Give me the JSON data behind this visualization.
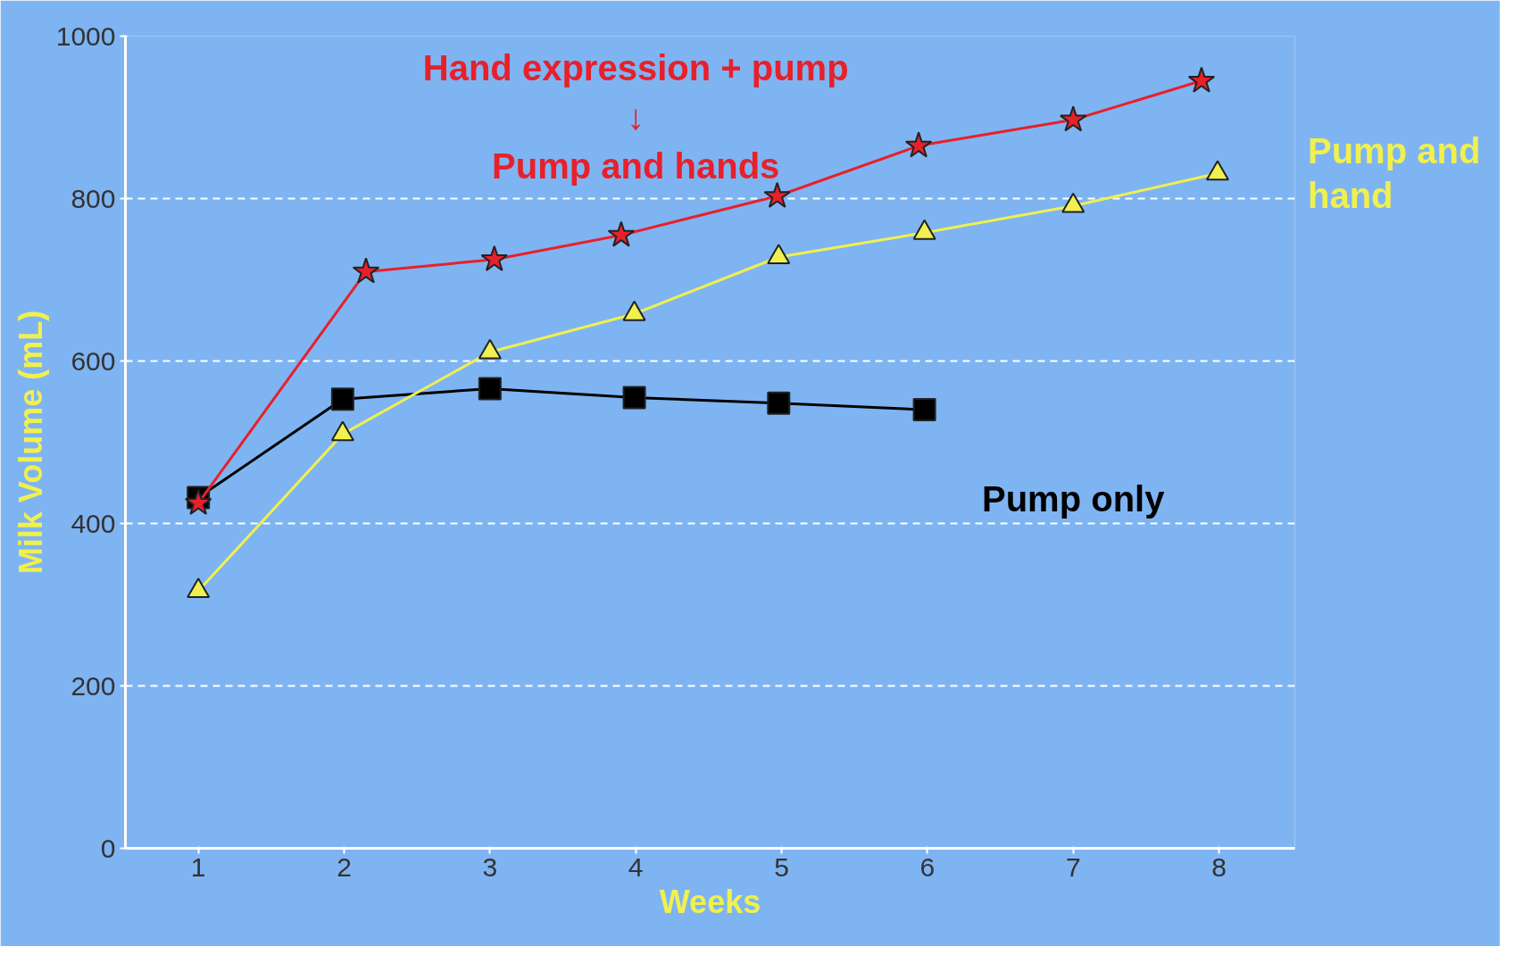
{
  "chart_data": {
    "type": "line",
    "xlabel": "Weeks",
    "ylabel": "Milk Volume (mL)",
    "xlim": [
      0.5,
      8.52
    ],
    "ylim": [
      0,
      1000
    ],
    "xticks": [
      1,
      2,
      3,
      4,
      5,
      6,
      7,
      8
    ],
    "yticks": [
      0,
      200,
      400,
      600,
      800,
      1000
    ],
    "grid": "y",
    "series": [
      {
        "name": "Hand expression + pump\n↓\nPump and hands",
        "color": "#e8202a",
        "marker": "star",
        "x": [
          1,
          2.15,
          3.03,
          3.9,
          4.97,
          5.94,
          7.0,
          7.88
        ],
        "values": [
          425,
          710,
          725,
          755,
          803,
          865,
          897,
          945
        ]
      },
      {
        "name": "Pump and\nhand",
        "color": "#f0f050",
        "marker": "triangle",
        "x": [
          1,
          1.99,
          3.0,
          3.99,
          4.98,
          5.98,
          7.0,
          7.99
        ],
        "values": [
          317,
          510,
          611,
          658,
          728,
          758,
          791,
          831
        ]
      },
      {
        "name": "Pump only",
        "color": "#000000",
        "marker": "square",
        "x": [
          1,
          1.99,
          3.0,
          3.99,
          4.98,
          5.98
        ],
        "values": [
          432,
          553,
          566,
          555,
          548,
          540
        ]
      }
    ]
  }
}
